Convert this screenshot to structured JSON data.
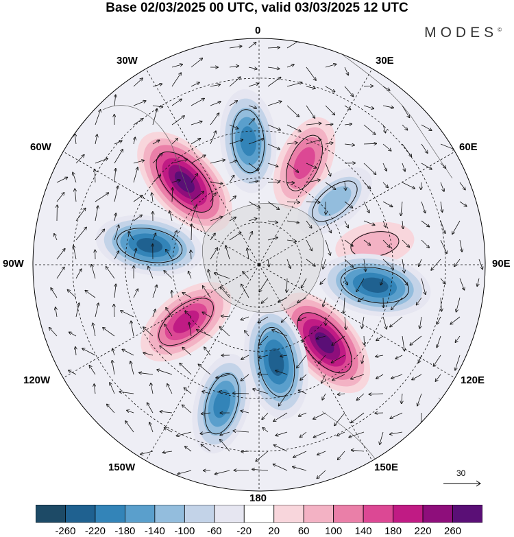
{
  "header": {
    "title": "Base 02/03/2025 00 UTC, valid 03/03/2025 12 UTC",
    "brand": "MODES",
    "brand_mark": "©"
  },
  "longitude_labels": {
    "lon_0": "0",
    "lon_30e": "30E",
    "lon_60e": "60E",
    "lon_90e": "90E",
    "lon_120e": "120E",
    "lon_150e": "150E",
    "lon_180": "180",
    "lon_150w": "150W",
    "lon_120w": "120W",
    "lon_90w": "90W",
    "lon_60w": "60W",
    "lon_30w": "30W"
  },
  "reference_vector": {
    "label": "30"
  },
  "colorbar": {
    "ticks": [
      "-260",
      "-220",
      "-180",
      "-140",
      "-100",
      "-60",
      "-20",
      "20",
      "60",
      "100",
      "140",
      "180",
      "220",
      "260"
    ],
    "colors": [
      "#1d4a66",
      "#1f6190",
      "#3384b8",
      "#5a9fcc",
      "#93bddd",
      "#c3d3e8",
      "#e6e6f1",
      "#ffffff",
      "#f8d6dc",
      "#f3b2c4",
      "#ea7fa8",
      "#dc4894",
      "#c01b84",
      "#8e0e7b",
      "#5a0f76"
    ]
  },
  "map_data": {
    "projection": "south polar stereographic",
    "anomalies": [
      {
        "lon": -42,
        "lat": -52,
        "value": 280
      },
      {
        "lon": -5,
        "lat": -48,
        "value": -200
      },
      {
        "lon": 24,
        "lat": -52,
        "value": 170
      },
      {
        "lon": 50,
        "lat": -56,
        "value": -130
      },
      {
        "lon": 80,
        "lat": -50,
        "value": 90
      },
      {
        "lon": 100,
        "lat": -50,
        "value": -240
      },
      {
        "lon": 140,
        "lat": -55,
        "value": 270
      },
      {
        "lon": 170,
        "lat": -56,
        "value": -250
      },
      {
        "lon": -165,
        "lat": -42,
        "value": -190
      },
      {
        "lon": -128,
        "lat": -58,
        "value": 210
      },
      {
        "lon": -80,
        "lat": -52,
        "value": -220
      }
    ]
  }
}
